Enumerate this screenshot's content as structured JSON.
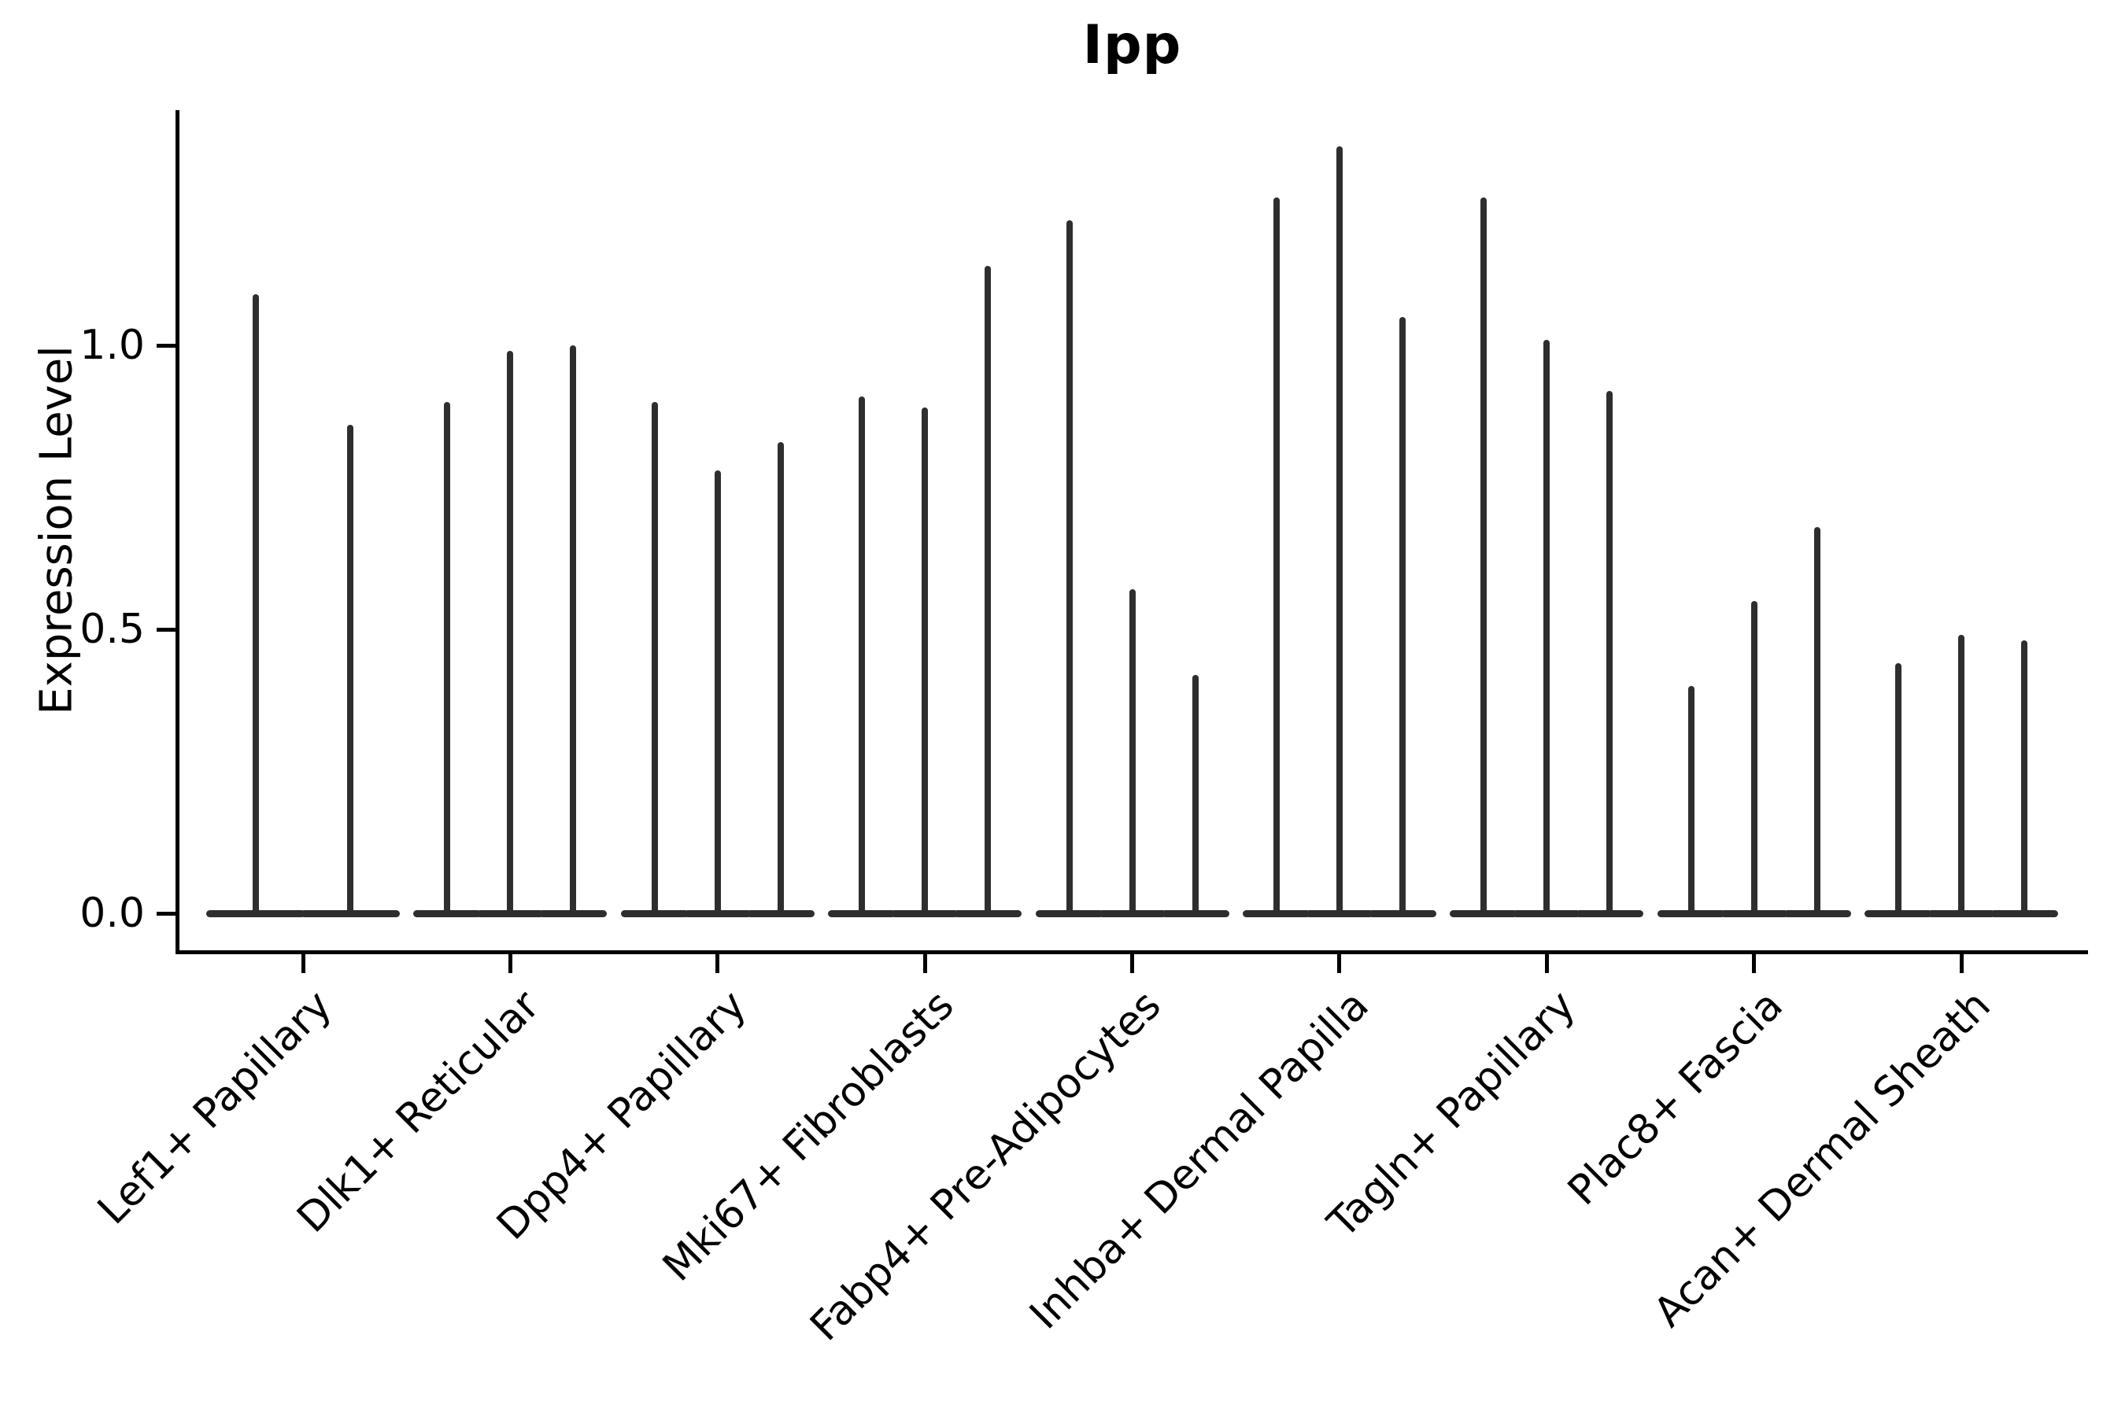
{
  "title": "Ipp",
  "axes": {
    "ylabel": "Expression Level",
    "ytick_labels": [
      "0.0",
      "0.5",
      "1.0"
    ]
  },
  "chart_data": {
    "type": "violin",
    "title": "Ipp",
    "xlabel": "",
    "ylabel": "Expression Level",
    "yticks": [
      0.0,
      0.5,
      1.0
    ],
    "ylim": [
      -0.07,
      1.41
    ],
    "grid": false,
    "legend": "none",
    "violin_style": "density collapsed at zero with one thin vertical spike per violin; wide flat base at y=0",
    "categories": [
      "Lef1+ Papillary",
      "Dlk1+ Reticular",
      "Dpp4+ Papillary",
      "Mki67+ Fibroblasts",
      "Fabp4+ Pre-Adipocytes",
      "Inhba+ Dermal Papilla",
      "Tagln+ Papillary",
      "Plac8+ Fascia",
      "Acan+ Dermal Sheath"
    ],
    "groups": [
      {
        "category": "Lef1+ Papillary",
        "spike_maxima": [
          1.09,
          0.86
        ]
      },
      {
        "category": "Dlk1+ Reticular",
        "spike_maxima": [
          0.9,
          0.99,
          1.0
        ]
      },
      {
        "category": "Dpp4+ Papillary",
        "spike_maxima": [
          0.9,
          0.78,
          0.83
        ]
      },
      {
        "category": "Mki67+ Fibroblasts",
        "spike_maxima": [
          0.91,
          0.89,
          1.14
        ]
      },
      {
        "category": "Fabp4+ Pre-Adipocytes",
        "spike_maxima": [
          1.22,
          0.57,
          0.42
        ]
      },
      {
        "category": "Inhba+ Dermal Papilla",
        "spike_maxima": [
          1.26,
          1.35,
          1.05
        ]
      },
      {
        "category": "Tagln+ Papillary",
        "spike_maxima": [
          1.26,
          1.01,
          0.92
        ]
      },
      {
        "category": "Plac8+ Fascia",
        "spike_maxima": [
          0.4,
          0.55,
          0.68
        ]
      },
      {
        "category": "Acan+ Dermal Sheath",
        "spike_maxima": [
          0.44,
          0.49,
          0.48
        ]
      }
    ],
    "colors": {
      "violin": "#2e2e2e",
      "axis": "#000000",
      "text": "#000000",
      "background": "#ffffff"
    }
  }
}
